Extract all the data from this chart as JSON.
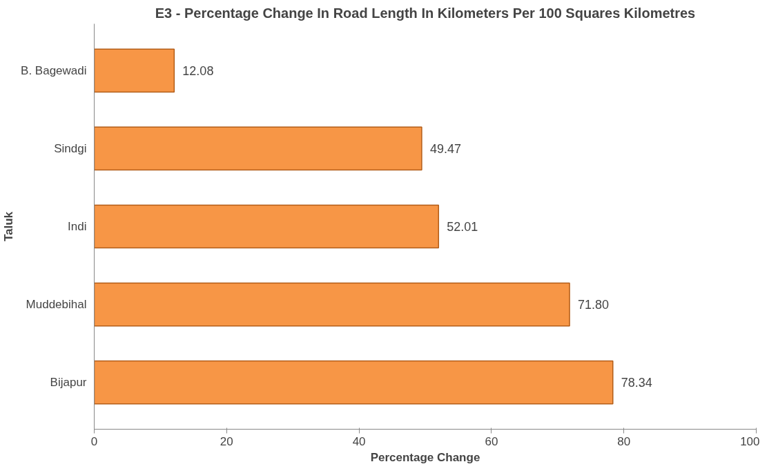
{
  "chart_data": {
    "type": "bar",
    "orientation": "horizontal",
    "title": "E3 - Percentage Change In Road Length In Kilometers Per 100 Squares Kilometres",
    "xlabel": "Percentage Change",
    "ylabel": "Taluk",
    "categories": [
      "B. Bagewadi",
      "Sindgi",
      "Indi",
      "Muddebihal",
      "Bijapur"
    ],
    "values": [
      12.08,
      49.47,
      52.01,
      71.8,
      78.34
    ],
    "value_labels": [
      "12.08",
      "49.47",
      "52.01",
      "71.80",
      "78.34"
    ],
    "color": "#f79646",
    "xlim": [
      0,
      100
    ],
    "xticks": [
      0,
      20,
      40,
      60,
      80,
      100
    ],
    "grid": false
  }
}
